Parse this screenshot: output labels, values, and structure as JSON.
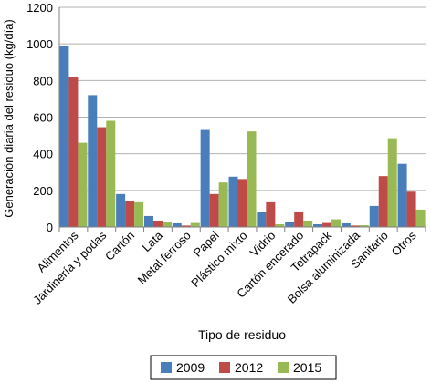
{
  "chart_data": {
    "type": "bar",
    "title": "",
    "xlabel": "Tipo de residuo",
    "ylabel": "Generación diaria del residuo (kg/día)",
    "ylim": [
      0,
      1200
    ],
    "yticks": [
      0,
      200,
      400,
      600,
      800,
      1000,
      1200
    ],
    "grid": true,
    "legend_position": "bottom",
    "categories": [
      "Alimentos",
      "Jardinería y podas",
      "Cartón",
      "Lata",
      "Metal ferroso",
      "Papel",
      "Plástico mixto",
      "Vidrio",
      "Cartón encerado",
      "Tetrapack",
      "Bolsa aluminizada",
      "Sanitario",
      "Otros"
    ],
    "series": [
      {
        "name": "2009",
        "color": "#4a7ebb",
        "values": [
          990,
          720,
          180,
          60,
          20,
          530,
          275,
          80,
          30,
          15,
          20,
          115,
          345
        ]
      },
      {
        "name": "2012",
        "color": "#be4b48",
        "values": [
          820,
          545,
          140,
          35,
          8,
          180,
          262,
          135,
          85,
          22,
          8,
          278,
          193
        ]
      },
      {
        "name": "2015",
        "color": "#98b954",
        "values": [
          460,
          580,
          135,
          25,
          22,
          243,
          522,
          15,
          35,
          42,
          10,
          485,
          95
        ]
      }
    ]
  }
}
